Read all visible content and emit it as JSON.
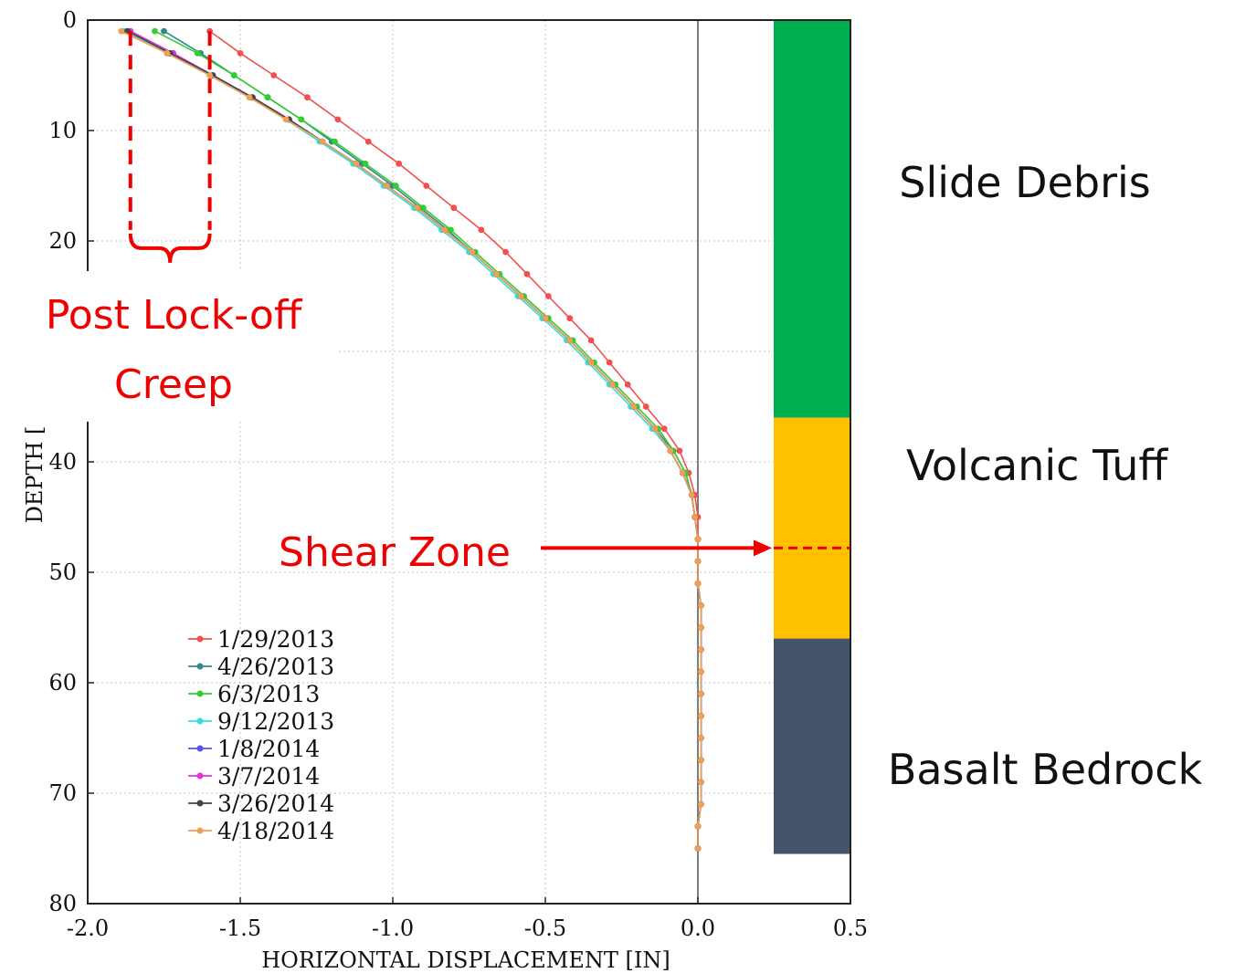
{
  "chart_data": {
    "type": "line",
    "xlabel": "HORIZONTAL DISPLACEMENT [IN]",
    "ylabel": "DEPTH [",
    "xlim": [
      -2.0,
      0.5
    ],
    "ylim": [
      0,
      80
    ],
    "y_inverted": true,
    "xticks": [
      "-2.0",
      "-1.5",
      "-1.0",
      "-0.5",
      "0.0",
      "0.5"
    ],
    "yticks": [
      "0",
      "10",
      "20",
      "30",
      "40",
      "50",
      "60",
      "70",
      "80"
    ],
    "grid": true,
    "legend_position": "lower-left",
    "depths": [
      1,
      3,
      5,
      7,
      9,
      11,
      13,
      15,
      17,
      19,
      21,
      23,
      25,
      27,
      29,
      31,
      33,
      35,
      37,
      39,
      41,
      43,
      45,
      47,
      49,
      51,
      53,
      55,
      57,
      59,
      61,
      63,
      65,
      67,
      69,
      71,
      73,
      75
    ],
    "series": [
      {
        "name": "1/29/2013",
        "color": "#f05050",
        "values": [
          -1.6,
          -1.5,
          -1.39,
          -1.28,
          -1.18,
          -1.08,
          -0.98,
          -0.89,
          -0.8,
          -0.71,
          -0.63,
          -0.56,
          -0.49,
          -0.42,
          -0.35,
          -0.29,
          -0.23,
          -0.17,
          -0.11,
          -0.06,
          -0.03,
          -0.01,
          0.0,
          0.0,
          0.0,
          0.0,
          0.01,
          0.01,
          0.01,
          0.01,
          0.01,
          0.01,
          0.01,
          0.01,
          0.01,
          0.01,
          0.0,
          0.0
        ]
      },
      {
        "name": "4/26/2013",
        "color": "#2e8b8b",
        "values": [
          -1.75,
          -1.63,
          -1.52,
          -1.41,
          -1.3,
          -1.2,
          -1.1,
          -1.0,
          -0.91,
          -0.82,
          -0.74,
          -0.66,
          -0.58,
          -0.5,
          -0.42,
          -0.35,
          -0.28,
          -0.21,
          -0.14,
          -0.08,
          -0.04,
          -0.02,
          -0.01,
          0.0,
          0.0,
          0.0,
          0.01,
          0.01,
          0.01,
          0.01,
          0.01,
          0.01,
          0.01,
          0.01,
          0.01,
          0.01,
          0.0,
          0.0
        ]
      },
      {
        "name": "6/3/2013",
        "color": "#33cc33",
        "values": [
          -1.78,
          -1.64,
          -1.52,
          -1.41,
          -1.3,
          -1.19,
          -1.09,
          -0.99,
          -0.9,
          -0.81,
          -0.73,
          -0.65,
          -0.57,
          -0.49,
          -0.41,
          -0.34,
          -0.27,
          -0.2,
          -0.13,
          -0.08,
          -0.04,
          -0.02,
          -0.01,
          0.0,
          0.0,
          0.0,
          0.01,
          0.01,
          0.01,
          0.01,
          0.01,
          0.01,
          0.01,
          0.01,
          0.01,
          0.01,
          0.0,
          0.0
        ]
      },
      {
        "name": "9/12/2013",
        "color": "#33e0e0",
        "values": [
          -1.88,
          -1.74,
          -1.6,
          -1.47,
          -1.35,
          -1.24,
          -1.13,
          -1.03,
          -0.93,
          -0.84,
          -0.75,
          -0.67,
          -0.59,
          -0.51,
          -0.43,
          -0.36,
          -0.29,
          -0.22,
          -0.15,
          -0.09,
          -0.05,
          -0.02,
          -0.01,
          0.0,
          0.0,
          0.0,
          0.01,
          0.01,
          0.01,
          0.01,
          0.01,
          0.01,
          0.01,
          0.01,
          0.01,
          0.01,
          0.0,
          0.0
        ]
      },
      {
        "name": "1/8/2014",
        "color": "#5555ee",
        "values": [
          -1.86,
          -1.72,
          -1.59,
          -1.46,
          -1.34,
          -1.23,
          -1.12,
          -1.02,
          -0.92,
          -0.83,
          -0.74,
          -0.66,
          -0.58,
          -0.5,
          -0.42,
          -0.35,
          -0.28,
          -0.21,
          -0.14,
          -0.09,
          -0.05,
          -0.02,
          -0.01,
          0.0,
          0.0,
          0.0,
          0.01,
          0.01,
          0.01,
          0.01,
          0.01,
          0.01,
          0.01,
          0.01,
          0.01,
          0.01,
          0.0,
          0.0
        ]
      },
      {
        "name": "3/7/2014",
        "color": "#dd33dd",
        "values": [
          -1.86,
          -1.72,
          -1.59,
          -1.46,
          -1.34,
          -1.23,
          -1.12,
          -1.02,
          -0.92,
          -0.83,
          -0.74,
          -0.66,
          -0.58,
          -0.5,
          -0.42,
          -0.35,
          -0.28,
          -0.21,
          -0.14,
          -0.09,
          -0.05,
          -0.02,
          -0.01,
          0.0,
          0.0,
          0.0,
          0.01,
          0.01,
          0.01,
          0.01,
          0.01,
          0.01,
          0.01,
          0.01,
          0.01,
          0.01,
          0.0,
          0.0
        ]
      },
      {
        "name": "3/26/2014",
        "color": "#444444",
        "values": [
          -1.87,
          -1.73,
          -1.59,
          -1.46,
          -1.34,
          -1.23,
          -1.12,
          -1.02,
          -0.92,
          -0.83,
          -0.74,
          -0.66,
          -0.58,
          -0.5,
          -0.42,
          -0.35,
          -0.28,
          -0.21,
          -0.14,
          -0.09,
          -0.05,
          -0.02,
          -0.01,
          0.0,
          0.0,
          0.0,
          0.01,
          0.01,
          0.01,
          0.01,
          0.01,
          0.01,
          0.01,
          0.01,
          0.01,
          0.01,
          0.0,
          0.0
        ]
      },
      {
        "name": "4/18/2014",
        "color": "#f0a050",
        "values": [
          -1.89,
          -1.74,
          -1.6,
          -1.47,
          -1.35,
          -1.23,
          -1.12,
          -1.02,
          -0.92,
          -0.83,
          -0.74,
          -0.66,
          -0.58,
          -0.5,
          -0.42,
          -0.35,
          -0.28,
          -0.21,
          -0.14,
          -0.09,
          -0.05,
          -0.02,
          -0.01,
          0.0,
          0.0,
          0.0,
          0.01,
          0.01,
          0.01,
          0.01,
          0.01,
          0.01,
          0.01,
          0.01,
          0.01,
          0.01,
          0.0,
          0.0
        ]
      }
    ],
    "layers": [
      {
        "name": "Slide Debris",
        "top": 0,
        "bottom": 36,
        "color": "#00b050"
      },
      {
        "name": "Volcanic Tuff",
        "top": 36,
        "bottom": 56,
        "color": "#ffc000"
      },
      {
        "name": "Basalt Bedrock",
        "top": 56,
        "bottom": 75.5,
        "color": "#44546a"
      }
    ],
    "annotations": {
      "creep_label_1": "Post Lock-off",
      "creep_label_2": "Creep",
      "creep_left_x": -1.86,
      "creep_right_x": -1.6,
      "shear_label": "Shear Zone",
      "shear_depth": 47.8
    }
  }
}
